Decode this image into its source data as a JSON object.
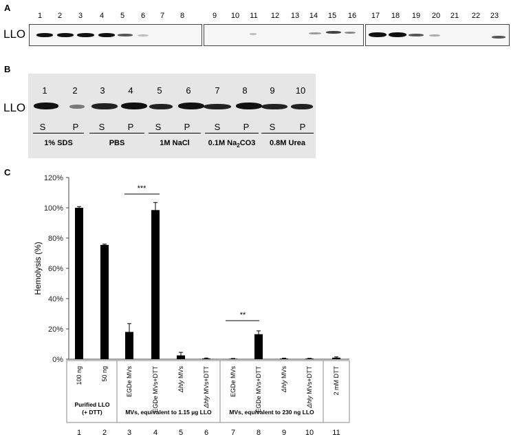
{
  "panel_a": {
    "letter": "A",
    "row_label": "LLO",
    "lane_numbers": [
      "1",
      "2",
      "3",
      "4",
      "5",
      "6",
      "7",
      "8",
      "9",
      "10",
      "11",
      "12",
      "13",
      "14",
      "15",
      "16",
      "17",
      "18",
      "19",
      "20",
      "21",
      "22",
      "23"
    ]
  },
  "panel_b": {
    "letter": "B",
    "row_label": "LLO",
    "lane_numbers": [
      "1",
      "2",
      "3",
      "4",
      "5",
      "6",
      "7",
      "8",
      "9",
      "10"
    ],
    "fractions": [
      "S",
      "P",
      "S",
      "P",
      "S",
      "P",
      "S",
      "P",
      "S",
      "P"
    ],
    "conditions": [
      {
        "text": "1% SDS"
      },
      {
        "text": "PBS"
      },
      {
        "text": "1M NaCl"
      },
      {
        "text": "0.1M Na",
        "sub": "2",
        "tail": "CO3"
      },
      {
        "text": "0.8M Urea"
      }
    ]
  },
  "panel_c": {
    "letter": "C",
    "group_labels": [
      {
        "text": "Purified LLO",
        "line2": "(+ DTT)"
      },
      {
        "text": "MVs, equivalent to 1.15 µg LLO"
      },
      {
        "text": "MVs, equivalent to 230 ng LLO"
      }
    ],
    "significance": [
      "***",
      "**"
    ]
  },
  "chart_data": {
    "type": "bar",
    "ylabel": "Hemolysis (%)",
    "ylim": [
      0,
      120
    ],
    "yticks": [
      "0%",
      "20%",
      "40%",
      "60%",
      "80%",
      "100%",
      "120%"
    ],
    "grid": false,
    "categories": [
      "100 ng",
      "50 ng",
      "EGDe MVs",
      "EGDe MVs+DTT",
      "Δhly MVs",
      "Δhly MVs+DTT",
      "EGDe MVs",
      "EGDe MVs+DTT",
      "Δhly MVs",
      "Δhly MVs+DTT",
      "2 mM DTT"
    ],
    "lane_numbers": [
      "1",
      "2",
      "3",
      "4",
      "5",
      "6",
      "7",
      "8",
      "9",
      "10",
      "11"
    ],
    "values": [
      100,
      75.5,
      18,
      98.5,
      2.5,
      0.5,
      0.3,
      16.5,
      0.4,
      0.4,
      1.0
    ],
    "errors": [
      0.8,
      0.5,
      5.5,
      5.0,
      2.0,
      0.3,
      0.2,
      2.2,
      0.3,
      0.2,
      0.5
    ],
    "bar_color": "#000000"
  }
}
